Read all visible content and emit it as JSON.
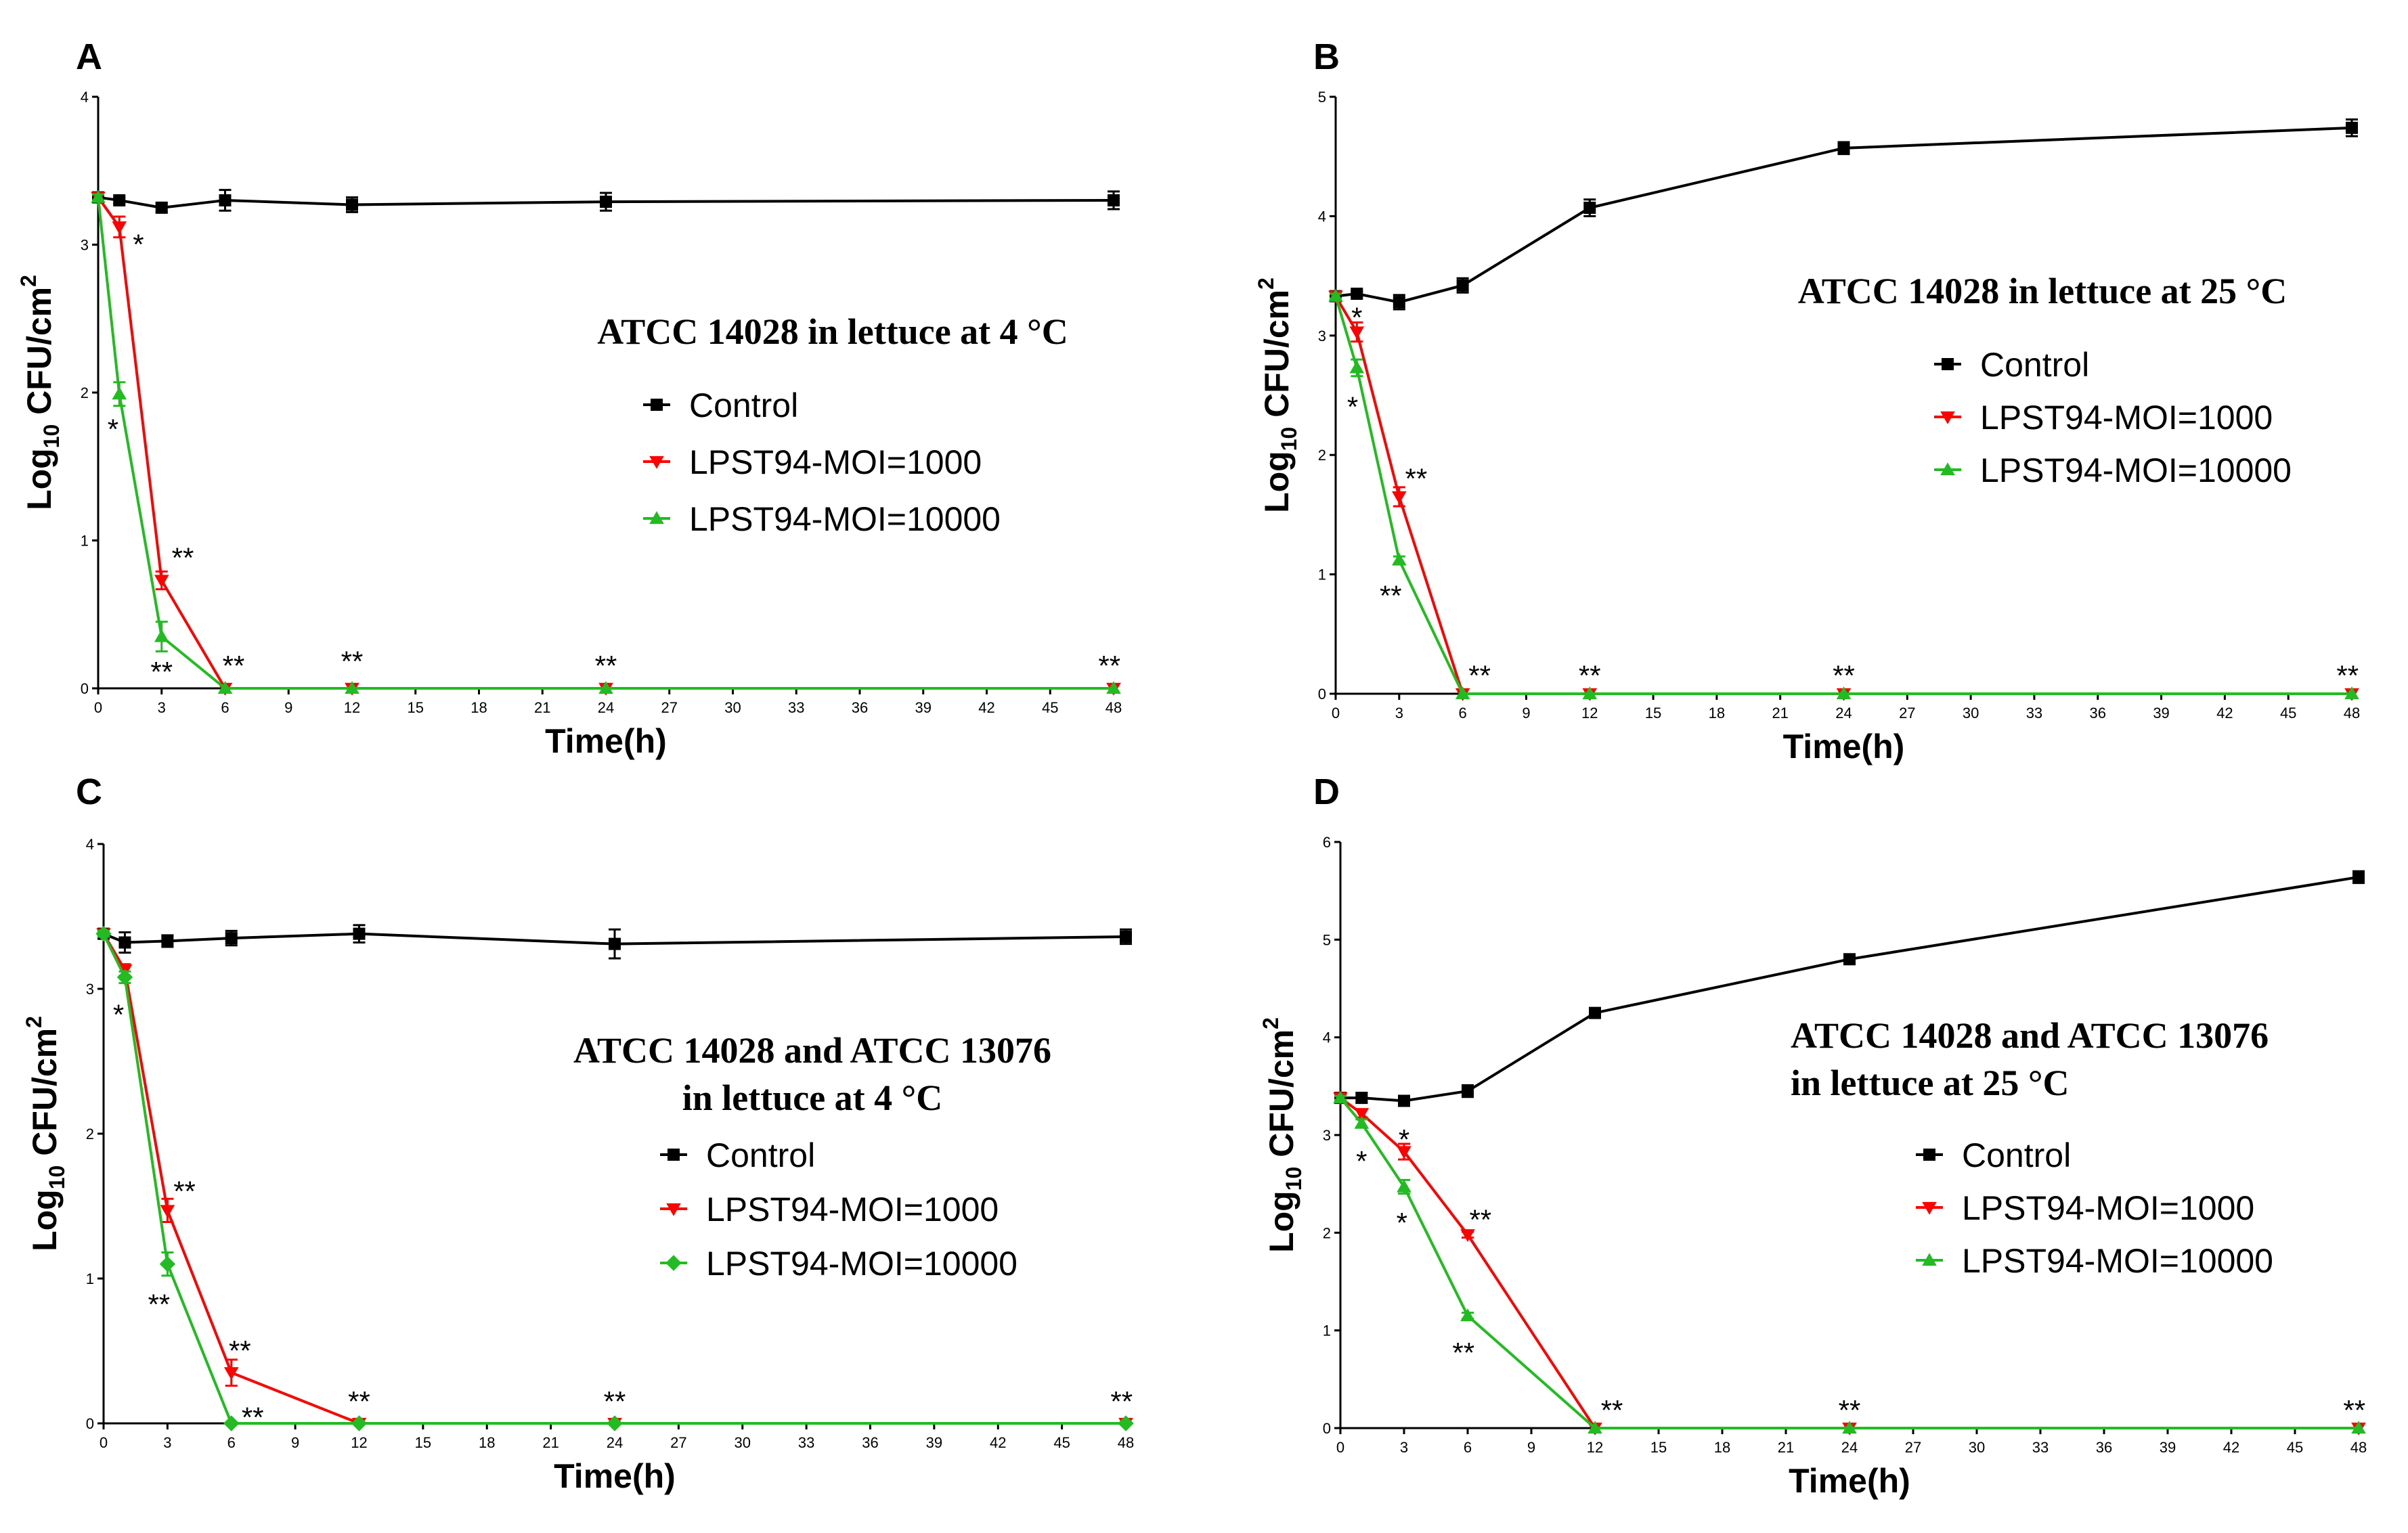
{
  "colors": {
    "control": "#000000",
    "moi1000": "#ff0000",
    "moi10000": "#22bb22"
  },
  "chart_data": [
    {
      "panel": "A",
      "type": "line",
      "title_lines": [
        "ATCC 14028 in lettuce at 4 °C"
      ],
      "xlabel": "Time(h)",
      "ylabel_base": "Log",
      "ylabel_sub": "10",
      "ylabel_unit": " CFU/cm",
      "ylabel_sup": "2",
      "xlim": [
        0,
        48
      ],
      "ylim": [
        0,
        4
      ],
      "xticks": [
        0,
        3,
        6,
        9,
        12,
        15,
        18,
        21,
        24,
        27,
        30,
        33,
        36,
        39,
        42,
        45,
        48
      ],
      "yticks": [
        0,
        1,
        2,
        3,
        4
      ],
      "series": [
        {
          "name": "Control",
          "key": "control",
          "marker": "square",
          "x": [
            0,
            1,
            3,
            6,
            12,
            24,
            48
          ],
          "y": [
            3.32,
            3.3,
            3.25,
            3.3,
            3.27,
            3.29,
            3.3
          ],
          "err": [
            0.02,
            0.02,
            0.03,
            0.07,
            0.05,
            0.06,
            0.06
          ]
        },
        {
          "name": "LPST94-MOI=1000",
          "key": "moi1000",
          "marker": "triangle-down",
          "x": [
            0,
            1,
            3,
            6,
            12,
            24,
            48
          ],
          "y": [
            3.32,
            3.12,
            0.73,
            0.0,
            0.0,
            0.0,
            0.0
          ],
          "err": [
            0.02,
            0.07,
            0.06,
            0.0,
            0.0,
            0.0,
            0.0
          ]
        },
        {
          "name": "LPST94-MOI=10000",
          "key": "moi10000",
          "marker": "triangle-up",
          "x": [
            0,
            1,
            3,
            6,
            12,
            24,
            48
          ],
          "y": [
            3.32,
            1.99,
            0.35,
            0.0,
            0.0,
            0.0,
            0.0
          ],
          "err": [
            0.02,
            0.08,
            0.1,
            0.0,
            0.0,
            0.0,
            0.0
          ]
        }
      ],
      "annotations": [
        {
          "text": "*",
          "x": 1.9,
          "y": 3.0
        },
        {
          "text": "*",
          "x": 0.7,
          "y": 1.75
        },
        {
          "text": "**",
          "x": 4.0,
          "y": 0.88
        },
        {
          "text": "**",
          "x": 3.0,
          "y": 0.11
        },
        {
          "text": "**",
          "x": 6.4,
          "y": 0.15
        },
        {
          "text": "**",
          "x": 12.0,
          "y": 0.18
        },
        {
          "text": "**",
          "x": 24.0,
          "y": 0.15
        },
        {
          "text": "**",
          "x": 47.8,
          "y": 0.15
        }
      ]
    },
    {
      "panel": "B",
      "type": "line",
      "title_lines": [
        "ATCC 14028 in lettuce at 25 °C"
      ],
      "xlabel": "Time(h)",
      "ylabel_base": "Log",
      "ylabel_sub": "10",
      "ylabel_unit": " CFU/cm",
      "ylabel_sup": "2",
      "xlim": [
        0,
        48
      ],
      "ylim": [
        0,
        5
      ],
      "xticks": [
        0,
        3,
        6,
        9,
        12,
        15,
        18,
        21,
        24,
        27,
        30,
        33,
        36,
        39,
        42,
        45,
        48
      ],
      "yticks": [
        0,
        1,
        2,
        3,
        4,
        5
      ],
      "series": [
        {
          "name": "Control",
          "key": "control",
          "marker": "square",
          "x": [
            0,
            1,
            3,
            6,
            12,
            24,
            48
          ],
          "y": [
            3.33,
            3.35,
            3.28,
            3.42,
            4.07,
            4.57,
            4.74
          ],
          "err": [
            0.02,
            0.02,
            0.06,
            0.06,
            0.07,
            0.05,
            0.07
          ]
        },
        {
          "name": "LPST94-MOI=1000",
          "key": "moi1000",
          "marker": "triangle-down",
          "x": [
            0,
            1,
            3,
            6,
            12,
            24,
            48
          ],
          "y": [
            3.33,
            3.03,
            1.65,
            0.0,
            0.0,
            0.0,
            0.0
          ],
          "err": [
            0.02,
            0.08,
            0.08,
            0.0,
            0.0,
            0.0,
            0.0
          ]
        },
        {
          "name": "LPST94-MOI=10000",
          "key": "moi10000",
          "marker": "triangle-up",
          "x": [
            0,
            1,
            3,
            6,
            12,
            24,
            48
          ],
          "y": [
            3.33,
            2.73,
            1.12,
            0.0,
            0.0,
            0.0,
            0.0
          ],
          "err": [
            0.02,
            0.07,
            0.03,
            0.0,
            0.0,
            0.0,
            0.0
          ]
        }
      ],
      "annotations": [
        {
          "text": "*",
          "x": 1.0,
          "y": 3.15
        },
        {
          "text": "*",
          "x": 0.8,
          "y": 2.4
        },
        {
          "text": "**",
          "x": 3.8,
          "y": 1.8
        },
        {
          "text": "**",
          "x": 2.6,
          "y": 0.82
        },
        {
          "text": "**",
          "x": 6.8,
          "y": 0.15
        },
        {
          "text": "**",
          "x": 12.0,
          "y": 0.15
        },
        {
          "text": "**",
          "x": 24.0,
          "y": 0.15
        },
        {
          "text": "**",
          "x": 47.8,
          "y": 0.15
        }
      ]
    },
    {
      "panel": "C",
      "type": "line",
      "title_lines": [
        "ATCC 14028 and ATCC 13076",
        " in lettuce at 4 °C"
      ],
      "xlabel": "Time(h)",
      "ylabel_base": "Log",
      "ylabel_sub": "10",
      "ylabel_unit": " CFU/cm",
      "ylabel_sup": "2",
      "xlim": [
        0,
        48
      ],
      "ylim": [
        0,
        4
      ],
      "xticks": [
        0,
        3,
        6,
        9,
        12,
        15,
        18,
        21,
        24,
        27,
        30,
        33,
        36,
        39,
        42,
        45,
        48
      ],
      "yticks": [
        0,
        1,
        2,
        3,
        4
      ],
      "series": [
        {
          "name": "Control",
          "key": "control",
          "marker": "square",
          "x": [
            0,
            1,
            3,
            6,
            12,
            24,
            48
          ],
          "y": [
            3.38,
            3.32,
            3.33,
            3.35,
            3.38,
            3.31,
            3.36
          ],
          "err": [
            0.02,
            0.07,
            0.04,
            0.05,
            0.06,
            0.1,
            0.05
          ]
        },
        {
          "name": "LPST94-MOI=1000",
          "key": "moi1000",
          "marker": "triangle-down",
          "x": [
            0,
            1,
            3,
            6,
            12,
            24,
            48
          ],
          "y": [
            3.38,
            3.13,
            1.47,
            0.35,
            0.0,
            0.0,
            0.0
          ],
          "err": [
            0.02,
            0.04,
            0.08,
            0.09,
            0.0,
            0.0,
            0.0
          ]
        },
        {
          "name": "LPST94-MOI=10000",
          "key": "moi10000",
          "marker": "diamond",
          "x": [
            0,
            1,
            3,
            6,
            12,
            24,
            48
          ],
          "y": [
            3.38,
            3.08,
            1.1,
            0.0,
            0.0,
            0.0,
            0.0
          ],
          "err": [
            0.02,
            0.04,
            0.08,
            0.0,
            0.0,
            0.0,
            0.0
          ]
        }
      ],
      "annotations": [
        {
          "text": "*",
          "x": 0.7,
          "y": 2.82
        },
        {
          "text": "**",
          "x": 3.8,
          "y": 1.6
        },
        {
          "text": "**",
          "x": 2.6,
          "y": 0.82
        },
        {
          "text": "**",
          "x": 6.4,
          "y": 0.5
        },
        {
          "text": "**",
          "x": 7.0,
          "y": 0.04
        },
        {
          "text": "**",
          "x": 12.0,
          "y": 0.15
        },
        {
          "text": "**",
          "x": 24.0,
          "y": 0.15
        },
        {
          "text": "**",
          "x": 47.8,
          "y": 0.15
        }
      ]
    },
    {
      "panel": "D",
      "type": "line",
      "title_lines": [
        "ATCC 14028 and ATCC 13076",
        "in lettuce at 25 °C"
      ],
      "xlabel": "Time(h)",
      "ylabel_base": "Log",
      "ylabel_sub": "10",
      "ylabel_unit": " CFU/cm",
      "ylabel_sup": "2",
      "xlim": [
        0,
        48
      ],
      "ylim": [
        0,
        6
      ],
      "xticks": [
        0,
        3,
        6,
        9,
        12,
        15,
        18,
        21,
        24,
        27,
        30,
        33,
        36,
        39,
        42,
        45,
        48
      ],
      "yticks": [
        0,
        1,
        2,
        3,
        4,
        5,
        6
      ],
      "series": [
        {
          "name": "Control",
          "key": "control",
          "marker": "square",
          "x": [
            0,
            1,
            3,
            6,
            12,
            24,
            48
          ],
          "y": [
            3.38,
            3.38,
            3.35,
            3.45,
            4.25,
            4.8,
            5.64
          ],
          "err": [
            0.02,
            0.05,
            0.04,
            0.06,
            0.04,
            0.04,
            0.06
          ]
        },
        {
          "name": "LPST94-MOI=1000",
          "key": "moi1000",
          "marker": "triangle-down",
          "x": [
            0,
            1,
            3,
            6,
            12,
            24,
            48
          ],
          "y": [
            3.38,
            3.22,
            2.83,
            1.98,
            0.0,
            0.0,
            0.0
          ],
          "err": [
            0.02,
            0.04,
            0.08,
            0.03,
            0.0,
            0.0,
            0.0
          ]
        },
        {
          "name": "LPST94-MOI=10000",
          "key": "moi10000",
          "marker": "triangle-up",
          "x": [
            0,
            1,
            3,
            6,
            12,
            24,
            48
          ],
          "y": [
            3.38,
            3.12,
            2.47,
            1.15,
            0.0,
            0.0,
            0.0
          ],
          "err": [
            0.02,
            0.04,
            0.07,
            0.03,
            0.0,
            0.0,
            0.0
          ]
        }
      ],
      "annotations": [
        {
          "text": "*",
          "x": 1.0,
          "y": 2.73
        },
        {
          "text": "*",
          "x": 3.0,
          "y": 2.95
        },
        {
          "text": "*",
          "x": 2.9,
          "y": 2.1
        },
        {
          "text": "**",
          "x": 6.6,
          "y": 2.13
        },
        {
          "text": "**",
          "x": 5.8,
          "y": 0.77
        },
        {
          "text": "**",
          "x": 12.8,
          "y": 0.18
        },
        {
          "text": "**",
          "x": 24.0,
          "y": 0.18
        },
        {
          "text": "**",
          "x": 47.8,
          "y": 0.18
        }
      ]
    }
  ]
}
